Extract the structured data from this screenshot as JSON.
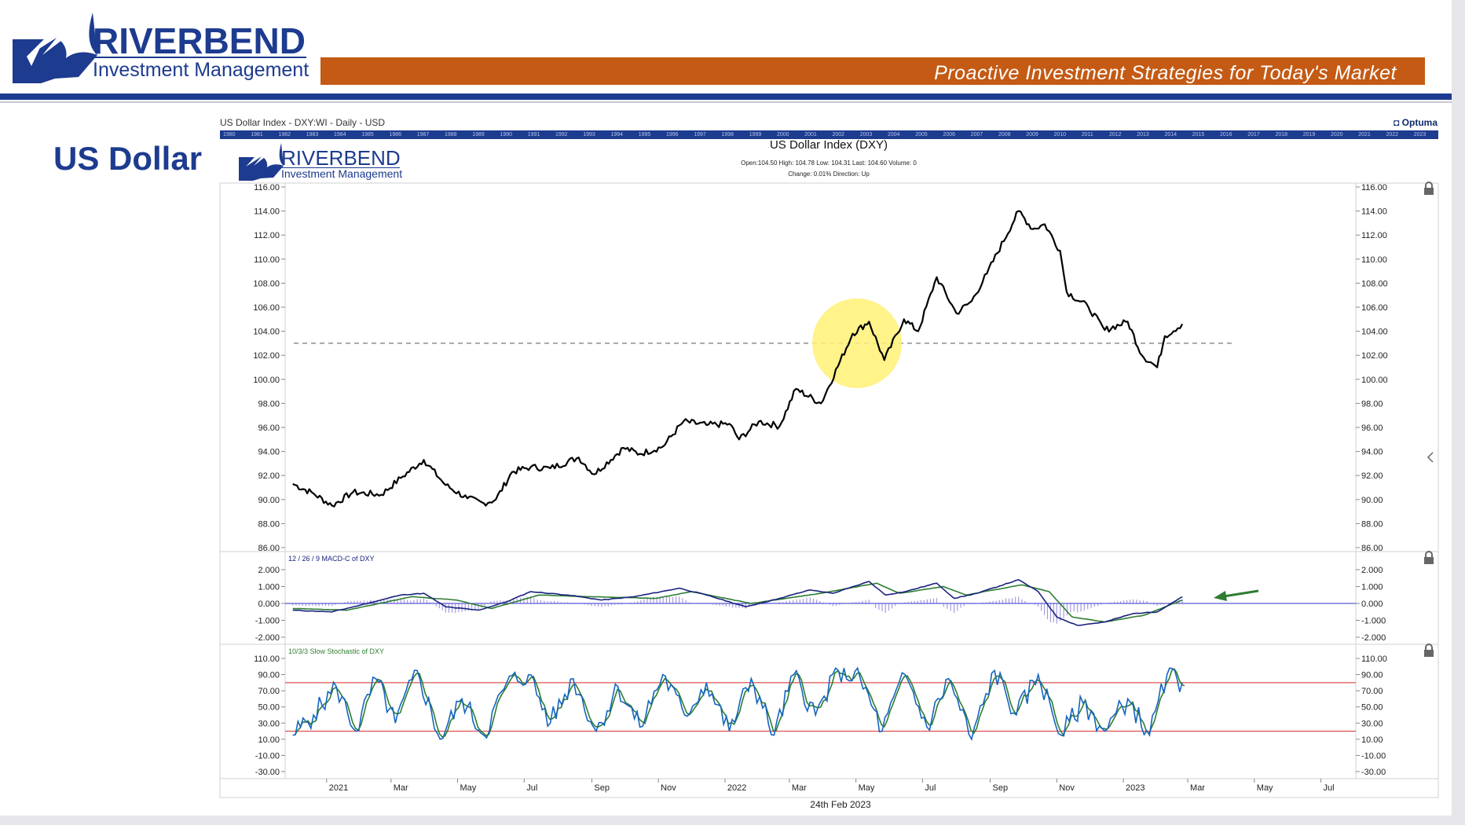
{
  "header": {
    "brand_name": "RIVERBEND",
    "brand_sub": "Investment Management",
    "tagline": "Proactive Investment Strategies for Today's Market"
  },
  "page": {
    "title": "US Dollar"
  },
  "chart_header": {
    "label": "US Dollar Index - DXY:WI - Daily - USD",
    "provider": "Optuma",
    "timeline_years": [
      "1980",
      "1981",
      "1982",
      "1983",
      "1984",
      "1985",
      "1986",
      "1987",
      "1988",
      "1989",
      "1990",
      "1991",
      "1992",
      "1993",
      "1994",
      "1995",
      "1996",
      "1997",
      "1998",
      "1999",
      "2000",
      "2001",
      "2002",
      "2003",
      "2004",
      "2005",
      "2006",
      "2007",
      "2008",
      "2009",
      "2010",
      "2011",
      "2012",
      "2013",
      "2014",
      "2015",
      "2016",
      "2017",
      "2018",
      "2019",
      "2020",
      "2021",
      "2022",
      "2023"
    ]
  },
  "colors": {
    "brand_blue": "#1d3b8f",
    "header_orange": "#c45a14",
    "price_line": "#000000",
    "macd_line": "#1a237e",
    "signal_line": "#2e7d32",
    "histogram": "#6a5acd",
    "stoch_k": "#1565c0",
    "stoch_d": "#2e7d32",
    "stoch_bands": "#d62728",
    "highlight": "#fff176",
    "arrow": "#2e7d32"
  },
  "chart_data": [
    {
      "type": "line",
      "title": "US Dollar Index (DXY)",
      "ohlc_text": "Open:104.50   High: 104.78   Low: 104.31   Last: 104.60   Volume: 0",
      "change_text": "Change: 0.01%   Direction: Up",
      "x_labels": [
        "2021",
        "Mar",
        "May",
        "Jul",
        "Sep",
        "Nov",
        "2022",
        "Mar",
        "May",
        "Jul",
        "Sep",
        "Nov",
        "2023",
        "Mar",
        "May",
        "Jul"
      ],
      "ylim": [
        86,
        116
      ],
      "yticks": [
        "116.00",
        "114.00",
        "112.00",
        "110.00",
        "108.00",
        "106.00",
        "104.00",
        "102.00",
        "100.00",
        "98.00",
        "96.00",
        "94.00",
        "92.00",
        "90.00",
        "88.00",
        "86.00"
      ],
      "series": [
        {
          "x": [
            "2020-12-01",
            "2020-12-20",
            "2021-01-06",
            "2021-01-25",
            "2021-02-20",
            "2021-03-10",
            "2021-03-31",
            "2021-04-20",
            "2021-05-10",
            "2021-05-25",
            "2021-06-05",
            "2021-06-20",
            "2021-07-07",
            "2021-07-25",
            "2021-08-20",
            "2021-09-03",
            "2021-09-30",
            "2021-10-15",
            "2021-11-05",
            "2021-11-24",
            "2021-12-15",
            "2022-01-05",
            "2022-01-14",
            "2022-02-01",
            "2022-02-20",
            "2022-03-07",
            "2022-03-30",
            "2022-04-28",
            "2022-05-13",
            "2022-05-27",
            "2022-06-14",
            "2022-06-27",
            "2022-07-14",
            "2022-08-01",
            "2022-08-15",
            "2022-08-29",
            "2022-09-27",
            "2022-10-10",
            "2022-10-21",
            "2022-11-04",
            "2022-11-10",
            "2022-11-30",
            "2022-12-15",
            "2023-01-05",
            "2023-01-18",
            "2023-02-01",
            "2023-02-08",
            "2023-02-24"
          ],
          "y": [
            91.3,
            90.5,
            89.5,
            90.6,
            90.4,
            91.8,
            93.3,
            91.2,
            90.1,
            89.7,
            90.0,
            92.3,
            92.7,
            92.6,
            93.5,
            92.1,
            94.3,
            93.8,
            94.4,
            96.5,
            96.2,
            96.3,
            95.0,
            96.5,
            96.1,
            99.2,
            98.0,
            103.8,
            104.8,
            101.6,
            105.0,
            104.0,
            108.5,
            105.5,
            106.5,
            108.8,
            114.0,
            112.5,
            112.9,
            110.7,
            107.3,
            106.0,
            104.1,
            104.8,
            102.0,
            101.0,
            103.6,
            104.6
          ]
        }
      ],
      "reference_level": 103.0,
      "highlight_center": [
        "2022-05-02",
        103.0
      ]
    },
    {
      "type": "line",
      "title": "12 / 26 / 9 MACD-C of DXY",
      "ylim": [
        -2,
        2
      ],
      "yticks": [
        "2.000",
        "1.000",
        "0.000",
        "-1.000",
        "-2.000"
      ],
      "series": [
        {
          "x": [
            "2020-12-01",
            "2021-01-06",
            "2021-02-01",
            "2021-03-10",
            "2021-03-31",
            "2021-04-20",
            "2021-05-20",
            "2021-06-15",
            "2021-07-07",
            "2021-08-10",
            "2021-09-10",
            "2021-10-10",
            "2021-11-20",
            "2021-12-15",
            "2022-01-20",
            "2022-02-20",
            "2022-03-20",
            "2022-04-10",
            "2022-05-13",
            "2022-05-28",
            "2022-06-15",
            "2022-07-14",
            "2022-07-30",
            "2022-08-20",
            "2022-09-27",
            "2022-10-15",
            "2022-11-01",
            "2022-11-20",
            "2022-12-15",
            "2023-01-10",
            "2023-02-01",
            "2023-02-24"
          ],
          "y": [
            -0.4,
            -0.5,
            -0.1,
            0.5,
            0.6,
            -0.2,
            -0.4,
            0.1,
            0.7,
            0.5,
            0.2,
            0.4,
            0.9,
            0.5,
            -0.2,
            0.3,
            0.8,
            0.6,
            1.3,
            0.5,
            0.7,
            1.2,
            0.3,
            0.6,
            1.4,
            0.7,
            -0.8,
            -1.3,
            -1.1,
            -0.6,
            -0.5,
            0.4
          ]
        },
        {
          "x": [
            "2020-12-01",
            "2021-01-20",
            "2021-03-20",
            "2021-04-30",
            "2021-06-01",
            "2021-07-15",
            "2021-08-30",
            "2021-10-30",
            "2021-12-01",
            "2022-01-25",
            "2022-03-30",
            "2022-05-20",
            "2022-06-10",
            "2022-07-20",
            "2022-08-10",
            "2022-09-30",
            "2022-10-25",
            "2022-11-15",
            "2022-12-15",
            "2023-01-20",
            "2023-02-24"
          ],
          "y": [
            -0.3,
            -0.4,
            0.4,
            0.2,
            -0.3,
            0.5,
            0.4,
            0.3,
            0.7,
            0.0,
            0.6,
            1.2,
            0.6,
            1.0,
            0.5,
            1.1,
            0.7,
            -0.8,
            -1.1,
            -0.7,
            0.2
          ]
        }
      ]
    },
    {
      "type": "line",
      "title": "10/3/3 Slow Stochastic of DXY",
      "ylim": [
        -30,
        110
      ],
      "yticks": [
        "110.00",
        "90.00",
        "70.00",
        "50.00",
        "30.00",
        "10.00",
        "-10.00",
        "-30.00"
      ],
      "bands": [
        80,
        20
      ],
      "series": [
        {
          "x": [
            "2020-12-01",
            "2020-12-20",
            "2021-01-10",
            "2021-01-28",
            "2021-02-15",
            "2021-03-05",
            "2021-03-25",
            "2021-04-15",
            "2021-05-05",
            "2021-05-25",
            "2021-06-15",
            "2021-07-05",
            "2021-07-25",
            "2021-08-15",
            "2021-09-05",
            "2021-09-25",
            "2021-10-15",
            "2021-11-05",
            "2021-11-25",
            "2021-12-15",
            "2022-01-05",
            "2022-01-25",
            "2022-02-15",
            "2022-03-05",
            "2022-03-25",
            "2022-04-15",
            "2022-05-05",
            "2022-05-25",
            "2022-06-15",
            "2022-07-05",
            "2022-07-25",
            "2022-08-15",
            "2022-09-05",
            "2022-09-25",
            "2022-10-15",
            "2022-11-05",
            "2022-11-25",
            "2022-12-15",
            "2023-01-05",
            "2023-01-25",
            "2023-02-10",
            "2023-02-24"
          ],
          "y": [
            15,
            40,
            75,
            20,
            85,
            30,
            95,
            10,
            60,
            15,
            80,
            90,
            30,
            85,
            20,
            75,
            25,
            90,
            40,
            80,
            20,
            85,
            15,
            90,
            40,
            95,
            85,
            20,
            90,
            25,
            85,
            10,
            95,
            40,
            90,
            15,
            55,
            20,
            60,
            15,
            90,
            80
          ]
        }
      ]
    }
  ],
  "footer": {
    "date": "24th Feb 2023"
  }
}
